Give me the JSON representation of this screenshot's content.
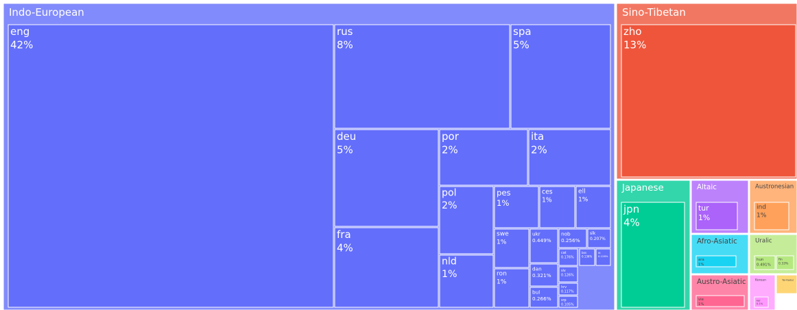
{
  "chart_data": {
    "type": "treemap",
    "groups": [
      {
        "name": "Indo-European",
        "color": "#636efa",
        "children": [
          {
            "name": "eng",
            "value": 42,
            "value_label": "42%"
          },
          {
            "name": "rus",
            "value": 8,
            "value_label": "8%"
          },
          {
            "name": "spa",
            "value": 5,
            "value_label": "5%"
          },
          {
            "name": "deu",
            "value": 5,
            "value_label": "5%"
          },
          {
            "name": "por",
            "value": 2,
            "value_label": "2%"
          },
          {
            "name": "ita",
            "value": 2,
            "value_label": "2%"
          },
          {
            "name": "pol",
            "value": 2,
            "value_label": "2%"
          },
          {
            "name": "pes",
            "value": 1,
            "value_label": "1%"
          },
          {
            "name": "ces",
            "value": 1,
            "value_label": "1%"
          },
          {
            "name": "ell",
            "value": 1,
            "value_label": "1%"
          },
          {
            "name": "fra",
            "value": 4,
            "value_label": "4%"
          },
          {
            "name": "nld",
            "value": 1,
            "value_label": "1%"
          },
          {
            "name": "swe",
            "value": 1,
            "value_label": "1%"
          },
          {
            "name": "ron",
            "value": 1,
            "value_label": "1%"
          },
          {
            "name": "ukr",
            "value": 0.449,
            "value_label": "0.449%"
          },
          {
            "name": "nob",
            "value": 0.256,
            "value_label": "0.256%"
          },
          {
            "name": "slk",
            "value": 0.207,
            "value_label": "0.207%"
          },
          {
            "name": "cat",
            "value": 0.176,
            "value_label": "0.176%"
          },
          {
            "name": "bos",
            "value": 0.136,
            "value_label": "0.136%"
          },
          {
            "name": "lit",
            "value": 0.128,
            "value_label": "0.128%"
          },
          {
            "name": "dan",
            "value": 0.321,
            "value_label": "0.321%"
          },
          {
            "name": "slv",
            "value": 0.126,
            "value_label": "0.126%"
          },
          {
            "name": "hrv",
            "value": 0.117,
            "value_label": "0.117%"
          },
          {
            "name": "bul",
            "value": 0.266,
            "value_label": "0.266%"
          },
          {
            "name": "srp",
            "value": 0.105,
            "value_label": "0.105%"
          }
        ]
      },
      {
        "name": "Sino-Tibetan",
        "color": "#ef553b",
        "children": [
          {
            "name": "zho",
            "value": 13,
            "value_label": "13%"
          }
        ]
      },
      {
        "name": "Japanese",
        "color": "#00cc96",
        "children": [
          {
            "name": "jpn",
            "value": 4,
            "value_label": "4%"
          }
        ]
      },
      {
        "name": "Altaic",
        "color": "#ab63fa",
        "children": [
          {
            "name": "tur",
            "value": 1,
            "value_label": "1%"
          }
        ]
      },
      {
        "name": "Austronesian",
        "color": "#ffa15a",
        "children": [
          {
            "name": "ind",
            "value": 1,
            "value_label": "1%"
          }
        ]
      },
      {
        "name": "Afro-Asiatic",
        "color": "#19d3f3",
        "children": [
          {
            "name": "ara",
            "value": 1,
            "value_label": "1%"
          }
        ]
      },
      {
        "name": "Uralic",
        "color": "#b6e880",
        "children": [
          {
            "name": "hun",
            "value": 0.491,
            "value_label": "0.491%"
          },
          {
            "name": "fin",
            "value": 0.33,
            "value_label": "0.33%"
          }
        ]
      },
      {
        "name": "Austro-Asiatic",
        "color": "#ff6692",
        "children": [
          {
            "name": "vie",
            "value": 1,
            "value_label": "1%"
          }
        ]
      },
      {
        "name": "Korean",
        "color": "#ff97ff",
        "children": [
          {
            "name": "kor",
            "value": 0.1,
            "value_label": "0.1%"
          }
        ]
      },
      {
        "name": "Tai-Kadai",
        "color": "#fecb52",
        "children": []
      }
    ]
  }
}
